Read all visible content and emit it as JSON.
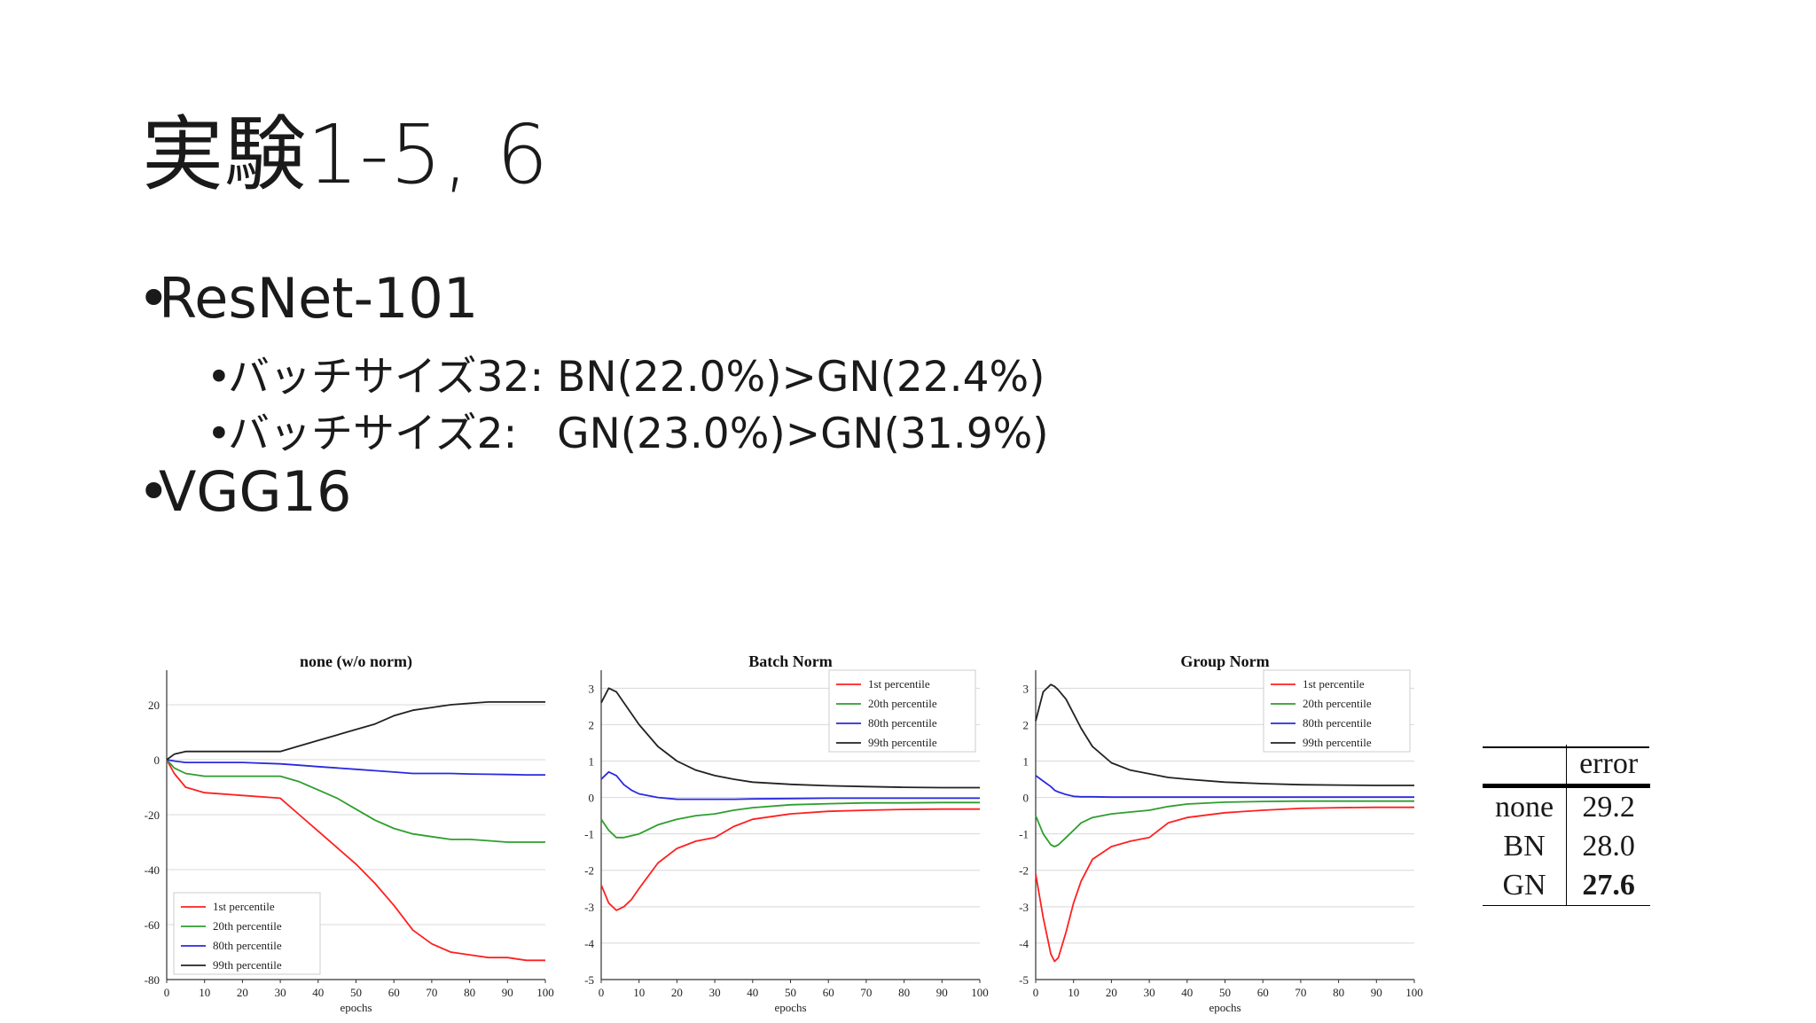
{
  "slide": {
    "title": "実験1-5, 6",
    "bullets": [
      {
        "text": "ResNet-101",
        "level": 1
      },
      {
        "text": "バッチサイズ32: BN(22.0%)>GN(22.4%)",
        "level": 2
      },
      {
        "text": "バッチサイズ2:   GN(23.0%)>GN(31.9%)",
        "level": 2
      },
      {
        "text": "VGG16",
        "level": 1
      }
    ]
  },
  "chart_data": [
    {
      "type": "line",
      "title": "none (w/o norm)",
      "xlabel": "epochs",
      "ylabel": "",
      "xlim": [
        0,
        100
      ],
      "ylim": [
        -80,
        30
      ],
      "xticks": [
        0,
        10,
        20,
        30,
        40,
        50,
        60,
        70,
        80,
        90,
        100
      ],
      "yticks": [
        20,
        0,
        -20,
        -40,
        -60,
        -80
      ],
      "grid": true,
      "legend_position": "bottom-left",
      "x": [
        0,
        2,
        5,
        10,
        20,
        30,
        35,
        40,
        45,
        50,
        55,
        60,
        65,
        70,
        75,
        80,
        85,
        90,
        95,
        100
      ],
      "series": [
        {
          "name": "1st percentile",
          "color": "#ff2020",
          "values": [
            0,
            -5,
            -10,
            -12,
            -13,
            -14,
            -20,
            -26,
            -32,
            -38,
            -45,
            -53,
            -62,
            -67,
            -70,
            -71,
            -72,
            -72,
            -73,
            -73
          ]
        },
        {
          "name": "20th percentile",
          "color": "#2e9e2e",
          "values": [
            0,
            -3,
            -5,
            -6,
            -6,
            -6,
            -8,
            -11,
            -14,
            -18,
            -22,
            -25,
            -27,
            -28,
            -29,
            -29,
            -29.5,
            -30,
            -30,
            -30
          ]
        },
        {
          "name": "80th percentile",
          "color": "#2a2ae0",
          "values": [
            0,
            -0.5,
            -1,
            -1,
            -1,
            -1.5,
            -2,
            -2.5,
            -3,
            -3.5,
            -4,
            -4.5,
            -5,
            -5,
            -5,
            -5.2,
            -5.3,
            -5.4,
            -5.5,
            -5.5
          ]
        },
        {
          "name": "99th percentile",
          "color": "#222222",
          "values": [
            0,
            2,
            3,
            3,
            3,
            3,
            5,
            7,
            9,
            11,
            13,
            16,
            18,
            19,
            20,
            20.5,
            21,
            21,
            21,
            21
          ]
        }
      ]
    },
    {
      "type": "line",
      "title": "Batch Norm",
      "xlabel": "epochs",
      "ylabel": "",
      "xlim": [
        0,
        100
      ],
      "ylim": [
        -5,
        3.3
      ],
      "xticks": [
        0,
        10,
        20,
        30,
        40,
        50,
        60,
        70,
        80,
        90,
        100
      ],
      "yticks": [
        3,
        2,
        1,
        0,
        -1,
        -2,
        -3,
        -4,
        -5
      ],
      "grid": true,
      "legend_position": "top-right",
      "x": [
        0,
        2,
        4,
        6,
        8,
        10,
        15,
        20,
        25,
        30,
        35,
        40,
        50,
        60,
        70,
        80,
        90,
        100
      ],
      "series": [
        {
          "name": "1st percentile",
          "color": "#ff2020",
          "values": [
            -2.4,
            -2.9,
            -3.1,
            -3.0,
            -2.8,
            -2.5,
            -1.8,
            -1.4,
            -1.2,
            -1.1,
            -0.8,
            -0.6,
            -0.45,
            -0.38,
            -0.35,
            -0.33,
            -0.32,
            -0.32
          ]
        },
        {
          "name": "20th percentile",
          "color": "#2e9e2e",
          "values": [
            -0.6,
            -0.9,
            -1.1,
            -1.1,
            -1.05,
            -1.0,
            -0.75,
            -0.6,
            -0.5,
            -0.45,
            -0.35,
            -0.28,
            -0.2,
            -0.17,
            -0.15,
            -0.15,
            -0.14,
            -0.14
          ]
        },
        {
          "name": "80th percentile",
          "color": "#2a2ae0",
          "values": [
            0.5,
            0.7,
            0.6,
            0.35,
            0.2,
            0.1,
            0.0,
            -0.05,
            -0.05,
            -0.05,
            -0.05,
            -0.04,
            -0.03,
            -0.02,
            -0.02,
            -0.02,
            -0.02,
            -0.02
          ]
        },
        {
          "name": "99th percentile",
          "color": "#222222",
          "values": [
            2.6,
            3.0,
            2.9,
            2.6,
            2.3,
            2.0,
            1.4,
            1.0,
            0.75,
            0.6,
            0.5,
            0.42,
            0.36,
            0.32,
            0.3,
            0.28,
            0.27,
            0.27
          ]
        }
      ]
    },
    {
      "type": "line",
      "title": "Group Norm",
      "xlabel": "epochs",
      "ylabel": "",
      "xlim": [
        0,
        100
      ],
      "ylim": [
        -5,
        3.3
      ],
      "xticks": [
        0,
        10,
        20,
        30,
        40,
        50,
        60,
        70,
        80,
        90,
        100
      ],
      "yticks": [
        3,
        2,
        1,
        0,
        -1,
        -2,
        -3,
        -4,
        -5
      ],
      "grid": true,
      "legend_position": "top-right",
      "x": [
        0,
        2,
        4,
        5,
        6,
        8,
        10,
        12,
        15,
        20,
        25,
        30,
        35,
        40,
        50,
        60,
        70,
        80,
        90,
        100
      ],
      "series": [
        {
          "name": "1st percentile",
          "color": "#ff2020",
          "values": [
            -2.1,
            -3.3,
            -4.3,
            -4.5,
            -4.4,
            -3.7,
            -2.9,
            -2.3,
            -1.7,
            -1.35,
            -1.2,
            -1.1,
            -0.7,
            -0.55,
            -0.42,
            -0.35,
            -0.3,
            -0.28,
            -0.27,
            -0.27
          ]
        },
        {
          "name": "20th percentile",
          "color": "#2e9e2e",
          "values": [
            -0.5,
            -1.0,
            -1.3,
            -1.35,
            -1.3,
            -1.1,
            -0.9,
            -0.7,
            -0.55,
            -0.45,
            -0.4,
            -0.35,
            -0.25,
            -0.18,
            -0.13,
            -0.11,
            -0.1,
            -0.1,
            -0.1,
            -0.1
          ]
        },
        {
          "name": "80th percentile",
          "color": "#2a2ae0",
          "values": [
            0.6,
            0.45,
            0.3,
            0.2,
            0.15,
            0.08,
            0.03,
            0.02,
            0.02,
            0.01,
            0.01,
            0.01,
            0.01,
            0.01,
            0.01,
            0.01,
            0.01,
            0.01,
            0.01,
            0.01
          ]
        },
        {
          "name": "99th percentile",
          "color": "#222222",
          "values": [
            2.1,
            2.9,
            3.1,
            3.05,
            2.95,
            2.7,
            2.3,
            1.9,
            1.4,
            0.95,
            0.75,
            0.65,
            0.55,
            0.5,
            0.42,
            0.38,
            0.35,
            0.34,
            0.33,
            0.33
          ]
        }
      ]
    }
  ],
  "error_table": {
    "header": [
      "",
      "error"
    ],
    "rows": [
      {
        "label": "none",
        "value": "29.2",
        "bold": false
      },
      {
        "label": "BN",
        "value": "28.0",
        "bold": false
      },
      {
        "label": "GN",
        "value": "27.6",
        "bold": true
      }
    ]
  }
}
